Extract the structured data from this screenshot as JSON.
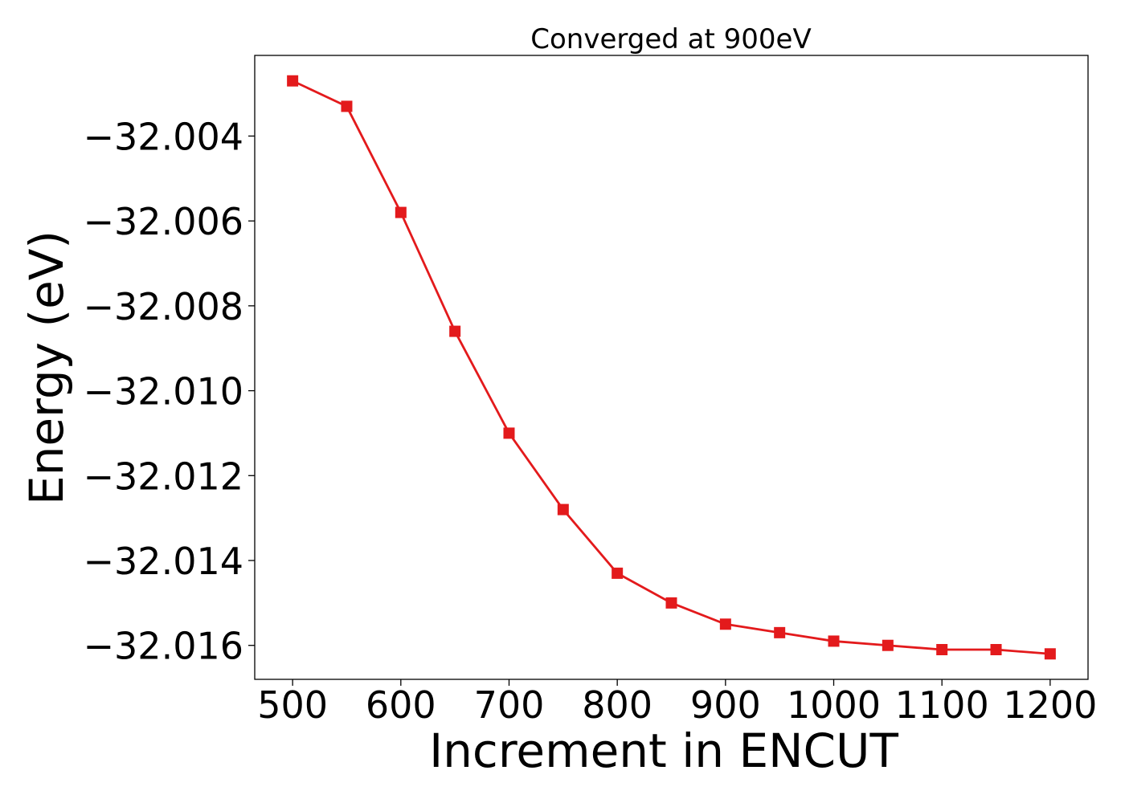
{
  "chart_data": {
    "type": "line",
    "title": "Converged at 900eV",
    "xlabel": "Increment in ENCUT",
    "ylabel": "Energy (eV)",
    "x": [
      500,
      550,
      600,
      650,
      700,
      750,
      800,
      850,
      900,
      950,
      1000,
      1050,
      1100,
      1150,
      1200
    ],
    "xticks": [
      500,
      600,
      700,
      800,
      900,
      1000,
      1100,
      1200
    ],
    "xtick_labels": [
      "500",
      "600",
      "700",
      "800",
      "900",
      "1000",
      "1100",
      "1200"
    ],
    "yticks": [
      -32.004,
      -32.006,
      -32.008,
      -32.01,
      -32.012,
      -32.014,
      -32.016
    ],
    "ytick_labels": [
      "−32.004",
      "−32.006",
      "−32.008",
      "−32.010",
      "−32.012",
      "−32.014",
      "−32.016"
    ],
    "xlim": [
      465,
      1235
    ],
    "ylim": [
      -32.0168,
      -32.0021
    ],
    "grid": false,
    "series": [
      {
        "color": "#e31a1c",
        "marker": "square",
        "values": [
          -32.0027,
          -32.0033,
          -32.0058,
          -32.0086,
          -32.011,
          -32.0128,
          -32.0143,
          -32.015,
          -32.0155,
          -32.0157,
          -32.0159,
          -32.016,
          -32.0161,
          -32.0161,
          -32.0162
        ]
      }
    ]
  }
}
